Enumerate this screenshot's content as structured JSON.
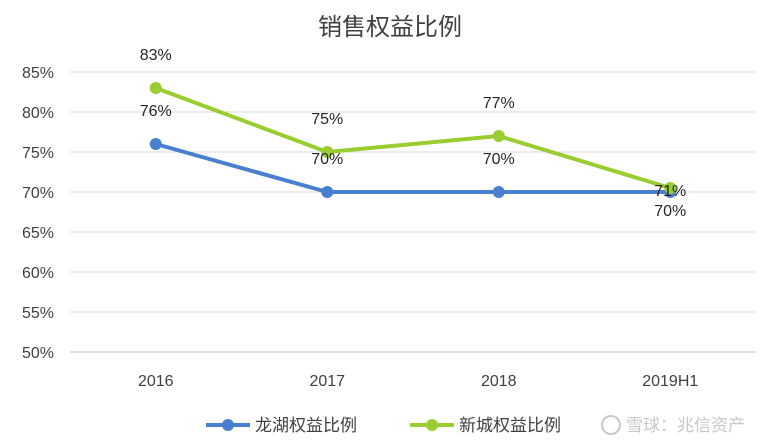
{
  "chart_data": {
    "type": "line",
    "title": "销售权益比例",
    "categories": [
      "2016",
      "2017",
      "2018",
      "2019H1"
    ],
    "y_ticks": [
      "50%",
      "55%",
      "60%",
      "65%",
      "70%",
      "75%",
      "80%",
      "85%"
    ],
    "ylim": [
      50,
      85
    ],
    "grid": true,
    "legend_position": "bottom",
    "series": [
      {
        "name": "龙湖权益比例",
        "color": "#4a7fcf",
        "values": [
          76,
          70,
          70,
          70
        ],
        "labels": [
          "76%",
          "70%",
          "70%",
          "70%"
        ]
      },
      {
        "name": "新城权益比例",
        "color": "#9acd32",
        "values": [
          83,
          75,
          77,
          70.5
        ],
        "labels": [
          "83%",
          "75%",
          "77%",
          "71%"
        ]
      }
    ]
  },
  "watermark": {
    "text": "雪球：兆信资产"
  }
}
